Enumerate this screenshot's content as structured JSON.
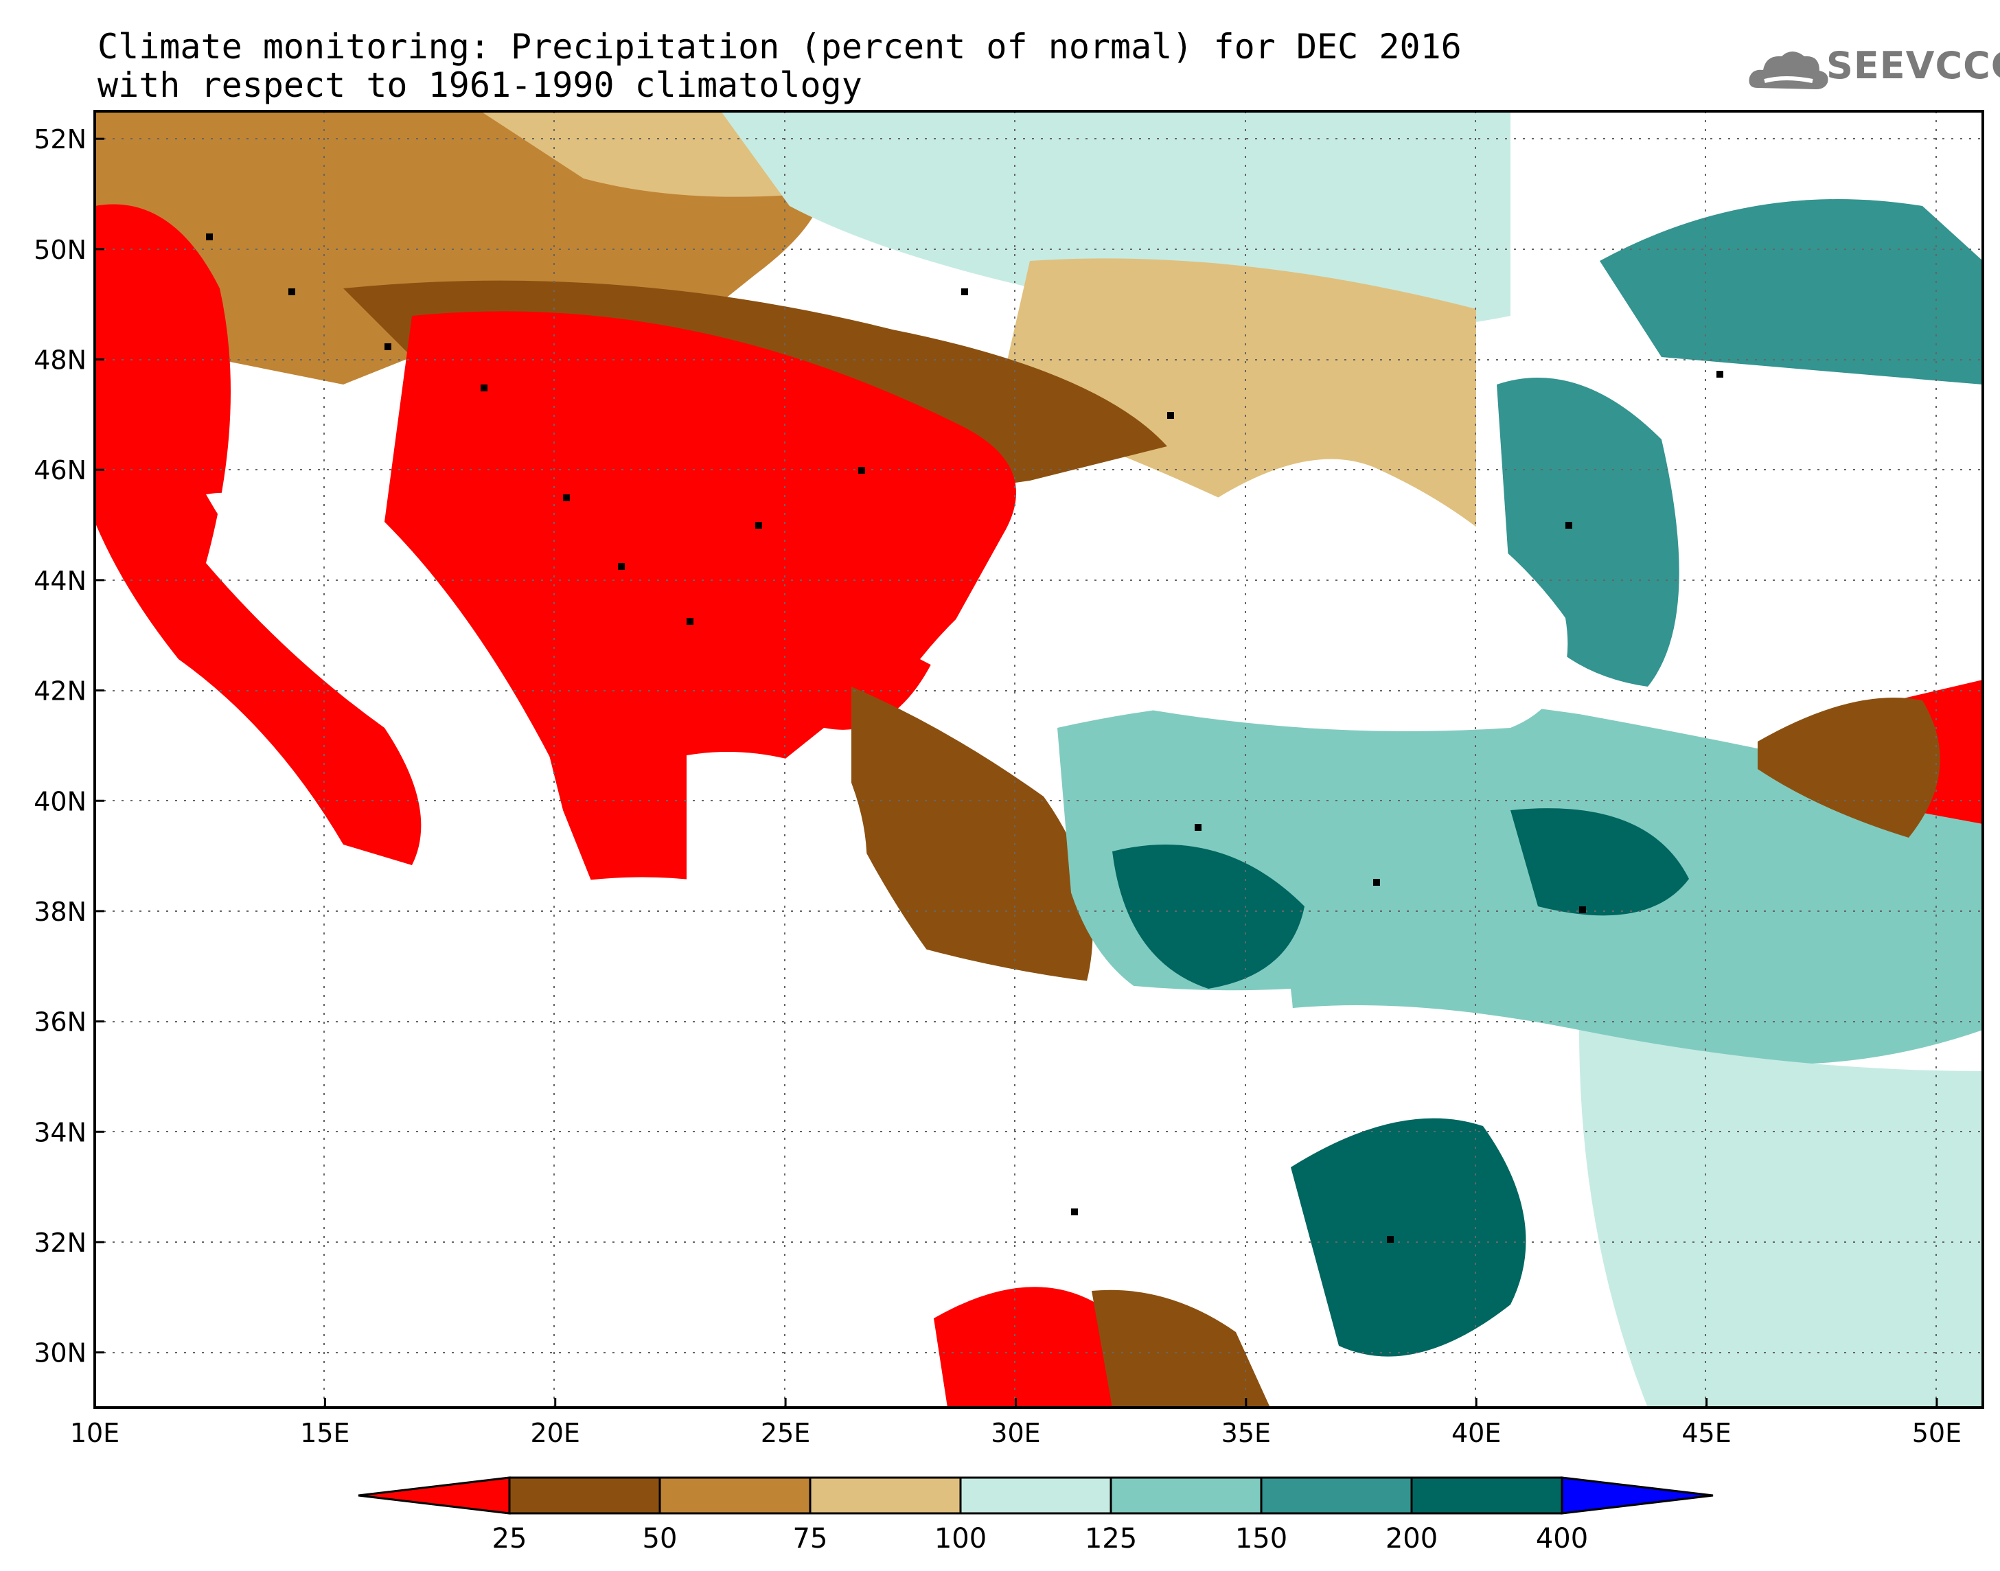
{
  "title_line1": "Climate monitoring: Precipitation (percent of normal) for DEC 2016",
  "title_line2": "with respect to 1961-1990 climatology",
  "logo_text": "SEEVCCC",
  "lat_labels": [
    "52N",
    "50N",
    "48N",
    "46N",
    "44N",
    "42N",
    "40N",
    "38N",
    "36N",
    "34N",
    "32N",
    "30N"
  ],
  "lat_values": [
    52,
    50,
    48,
    46,
    44,
    42,
    40,
    38,
    36,
    34,
    32,
    30
  ],
  "lon_labels": [
    "10E",
    "15E",
    "20E",
    "25E",
    "30E",
    "35E",
    "40E",
    "45E",
    "50E"
  ],
  "lon_values": [
    10,
    15,
    20,
    25,
    30,
    35,
    40,
    45,
    50
  ],
  "extent": {
    "lon_min": 10,
    "lon_max": 51,
    "lat_min": 29,
    "lat_max": 52.5
  },
  "colorbar": {
    "colors": [
      "#ff0000",
      "#8b5010",
      "#c08435",
      "#e0c07e",
      "#c6ebe3",
      "#80cbbf",
      "#339490",
      "#006660",
      "#0000ff"
    ],
    "labels": [
      "25",
      "50",
      "75",
      "100",
      "125",
      "150",
      "200",
      "400"
    ]
  }
}
